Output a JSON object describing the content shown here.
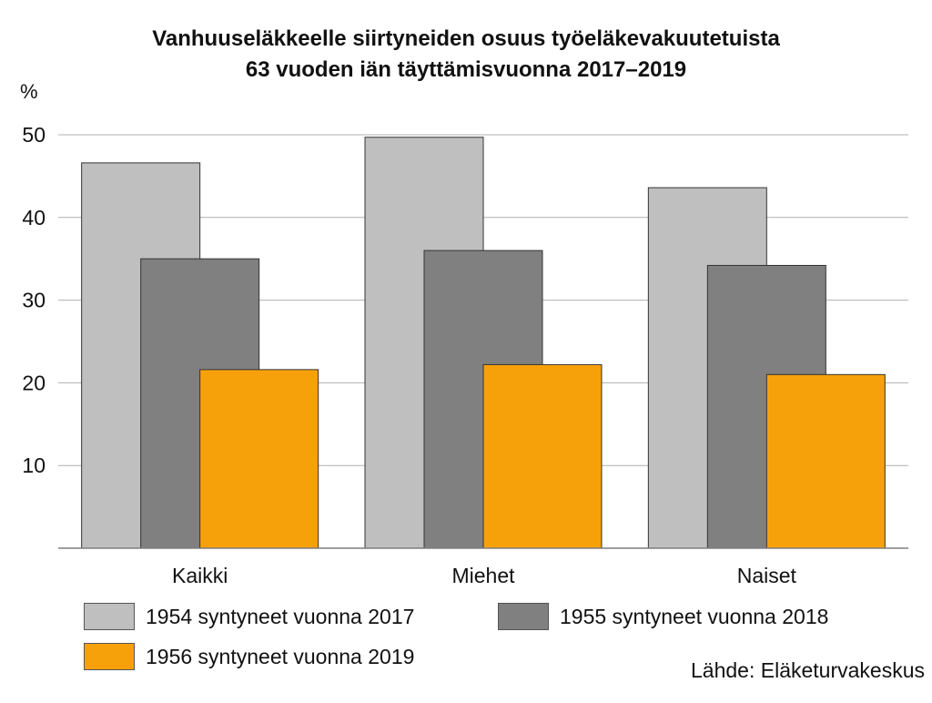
{
  "chart_data": {
    "type": "bar",
    "title_line1": "Vanhuuseläkkeelle siirtyneiden osuus työeläkevakuutetuista",
    "title_line2": "63 vuoden iän täyttämisvuonna 2017–2019",
    "unit": "%",
    "categories": [
      "Kaikki",
      "Miehet",
      "Naiset"
    ],
    "series": [
      {
        "name": "1954 syntyneet vuonna 2017",
        "values": [
          46.6,
          49.7,
          43.6
        ],
        "color": "#bfbfbf"
      },
      {
        "name": "1955 syntyneet vuonna 2018",
        "values": [
          35.0,
          36.0,
          34.2
        ],
        "color": "#808080"
      },
      {
        "name": "1956 syntyneet vuonna 2019",
        "values": [
          21.6,
          22.2,
          21.0
        ],
        "color": "#f7a10a"
      }
    ],
    "ylim": [
      0,
      50
    ],
    "yticks": [
      "10",
      "20",
      "30",
      "40",
      "50"
    ],
    "grid": true,
    "legend_position": "bottom",
    "source": "Lähde: Eläketurvakeskus"
  }
}
